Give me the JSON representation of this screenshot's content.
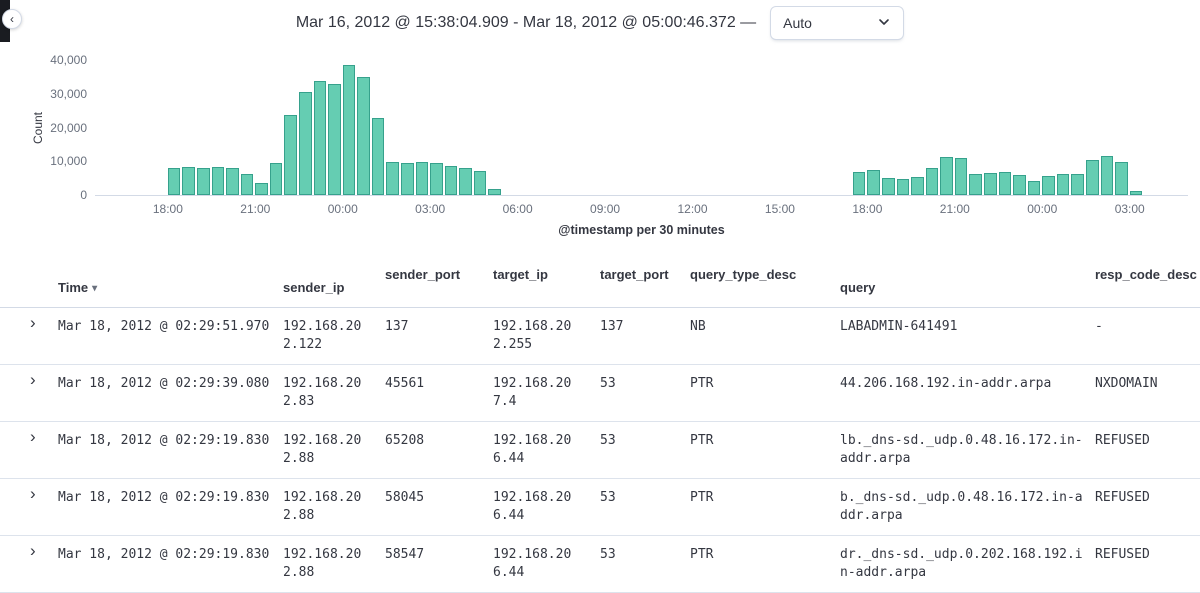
{
  "icons": {
    "chevron_left": "‹",
    "chevron_right": "›",
    "sort_desc": "▾"
  },
  "colors": {
    "bar_fill": "#65cdb2",
    "bar_stroke": "#36a18c",
    "border": "#d3dae6",
    "axis_text": "#69707d",
    "text": "#343741"
  },
  "header": {
    "time_range": "Mar 16, 2012 @ 15:38:04.909 - Mar 18, 2012 @ 05:00:46.372 —",
    "interval_value": "Auto"
  },
  "chart_data": {
    "type": "bar",
    "title": "",
    "ylabel": "Count",
    "xlabel": "@timestamp per 30 minutes",
    "ylim": [
      0,
      40000
    ],
    "x_domain_hours": [
      15.5,
      53.0
    ],
    "bar_width_hours": 0.5,
    "legend": "none",
    "grid": "off",
    "y_ticks": [
      {
        "v": 0,
        "label": "0"
      },
      {
        "v": 10000,
        "label": "10,000"
      },
      {
        "v": 20000,
        "label": "20,000"
      },
      {
        "v": 30000,
        "label": "30,000"
      },
      {
        "v": 40000,
        "label": "40,000"
      }
    ],
    "x_ticks": [
      {
        "h": 18,
        "label": "18:00"
      },
      {
        "h": 21,
        "label": "21:00"
      },
      {
        "h": 24,
        "label": "00:00"
      },
      {
        "h": 27,
        "label": "03:00"
      },
      {
        "h": 30,
        "label": "06:00"
      },
      {
        "h": 33,
        "label": "09:00"
      },
      {
        "h": 36,
        "label": "12:00"
      },
      {
        "h": 39,
        "label": "15:00"
      },
      {
        "h": 42,
        "label": "18:00"
      },
      {
        "h": 45,
        "label": "21:00"
      },
      {
        "h": 48,
        "label": "00:00"
      },
      {
        "h": 51,
        "label": "03:00"
      }
    ],
    "bars": [
      {
        "h": 18.0,
        "v": 8100
      },
      {
        "h": 18.5,
        "v": 8300
      },
      {
        "h": 19.0,
        "v": 7900
      },
      {
        "h": 19.5,
        "v": 8200
      },
      {
        "h": 20.0,
        "v": 7900
      },
      {
        "h": 20.5,
        "v": 6200
      },
      {
        "h": 21.0,
        "v": 3500
      },
      {
        "h": 21.5,
        "v": 9500
      },
      {
        "h": 22.0,
        "v": 23700
      },
      {
        "h": 22.5,
        "v": 30600
      },
      {
        "h": 23.0,
        "v": 33800
      },
      {
        "h": 23.5,
        "v": 32800
      },
      {
        "h": 24.0,
        "v": 38500
      },
      {
        "h": 24.5,
        "v": 35100
      },
      {
        "h": 25.0,
        "v": 22800
      },
      {
        "h": 25.5,
        "v": 9800
      },
      {
        "h": 26.0,
        "v": 9400
      },
      {
        "h": 26.5,
        "v": 9900
      },
      {
        "h": 27.0,
        "v": 9600
      },
      {
        "h": 27.5,
        "v": 8700
      },
      {
        "h": 28.0,
        "v": 8000
      },
      {
        "h": 28.5,
        "v": 7000
      },
      {
        "h": 29.0,
        "v": 1700
      },
      {
        "h": 41.5,
        "v": 6800
      },
      {
        "h": 42.0,
        "v": 7400
      },
      {
        "h": 42.5,
        "v": 5100
      },
      {
        "h": 43.0,
        "v": 4700
      },
      {
        "h": 43.5,
        "v": 5300
      },
      {
        "h": 44.0,
        "v": 8000
      },
      {
        "h": 44.5,
        "v": 11400
      },
      {
        "h": 45.0,
        "v": 10900
      },
      {
        "h": 45.5,
        "v": 6100
      },
      {
        "h": 46.0,
        "v": 6400
      },
      {
        "h": 46.5,
        "v": 6900
      },
      {
        "h": 47.0,
        "v": 6000
      },
      {
        "h": 47.5,
        "v": 4200
      },
      {
        "h": 48.0,
        "v": 5600
      },
      {
        "h": 48.5,
        "v": 6300
      },
      {
        "h": 49.0,
        "v": 6100
      },
      {
        "h": 49.5,
        "v": 10400
      },
      {
        "h": 50.0,
        "v": 11700
      },
      {
        "h": 50.5,
        "v": 9700
      },
      {
        "h": 51.0,
        "v": 1300
      }
    ]
  },
  "table": {
    "columns": [
      {
        "label": "Time",
        "sorted": "desc"
      },
      {
        "label": "sender_ip"
      },
      {
        "label": "sender_port"
      },
      {
        "label": "target_ip"
      },
      {
        "label": "target_port"
      },
      {
        "label": "query_type_desc"
      },
      {
        "label": "query"
      },
      {
        "label": "resp_code_desc"
      }
    ],
    "rows": [
      {
        "time": "Mar 18, 2012 @ 02:29:51.970",
        "sender_ip": "192.168.202.122",
        "sender_port": "137",
        "target_ip": "192.168.202.255",
        "target_port": "137",
        "query_type_desc": "NB",
        "query": "LABADMIN-641491",
        "resp_code_desc": "-"
      },
      {
        "time": "Mar 18, 2012 @ 02:29:39.080",
        "sender_ip": "192.168.202.83",
        "sender_port": "45561",
        "target_ip": "192.168.207.4",
        "target_port": "53",
        "query_type_desc": "PTR",
        "query": "44.206.168.192.in-addr.arpa",
        "resp_code_desc": "NXDOMAIN"
      },
      {
        "time": "Mar 18, 2012 @ 02:29:19.830",
        "sender_ip": "192.168.202.88",
        "sender_port": "65208",
        "target_ip": "192.168.206.44",
        "target_port": "53",
        "query_type_desc": "PTR",
        "query": "lb._dns-sd._udp.0.48.16.172.in-addr.arpa",
        "resp_code_desc": "REFUSED"
      },
      {
        "time": "Mar 18, 2012 @ 02:29:19.830",
        "sender_ip": "192.168.202.88",
        "sender_port": "58045",
        "target_ip": "192.168.206.44",
        "target_port": "53",
        "query_type_desc": "PTR",
        "query": "b._dns-sd._udp.0.48.16.172.in-addr.arpa",
        "resp_code_desc": "REFUSED"
      },
      {
        "time": "Mar 18, 2012 @ 02:29:19.830",
        "sender_ip": "192.168.202.88",
        "sender_port": "58547",
        "target_ip": "192.168.206.44",
        "target_port": "53",
        "query_type_desc": "PTR",
        "query": "dr._dns-sd._udp.0.202.168.192.in-addr.arpa",
        "resp_code_desc": "REFUSED"
      }
    ]
  }
}
